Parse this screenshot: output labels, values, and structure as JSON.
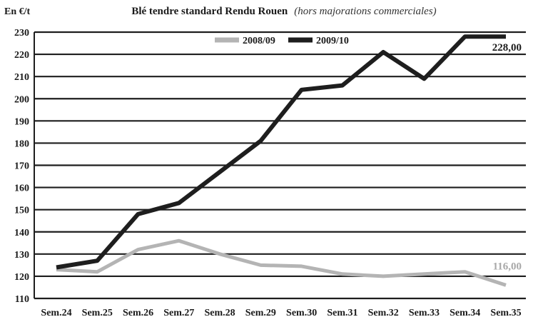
{
  "chart_data": {
    "type": "line",
    "title": "Blé tendre standard Rendu Rouen",
    "subtitle": "(hors majorations commerciales)",
    "unit_label": "En €/t",
    "categories": [
      "Sem.24",
      "Sem.25",
      "Sem.26",
      "Sem.27",
      "Sem.28",
      "Sem.29",
      "Sem.30",
      "Sem.31",
      "Sem.32",
      "Sem.33",
      "Sem.34",
      "Sem.35"
    ],
    "ylim": [
      110,
      230
    ],
    "yticks": [
      "110",
      "120",
      "130",
      "140",
      "150",
      "160",
      "170",
      "180",
      "190",
      "200",
      "210",
      "220",
      "230"
    ],
    "grid": true,
    "legend_position": "top-right",
    "series": [
      {
        "name": "2008/09",
        "color": "#b4b4b4",
        "values": [
          123,
          122,
          132,
          136,
          130,
          125,
          124.5,
          121,
          120,
          121,
          122,
          116
        ],
        "end_label": "116,00"
      },
      {
        "name": "2009/10",
        "color": "#1e1e1e",
        "values": [
          124,
          127,
          148,
          153,
          167,
          181,
          204,
          206,
          221,
          209,
          228,
          228
        ],
        "end_label": "228,00"
      }
    ]
  }
}
